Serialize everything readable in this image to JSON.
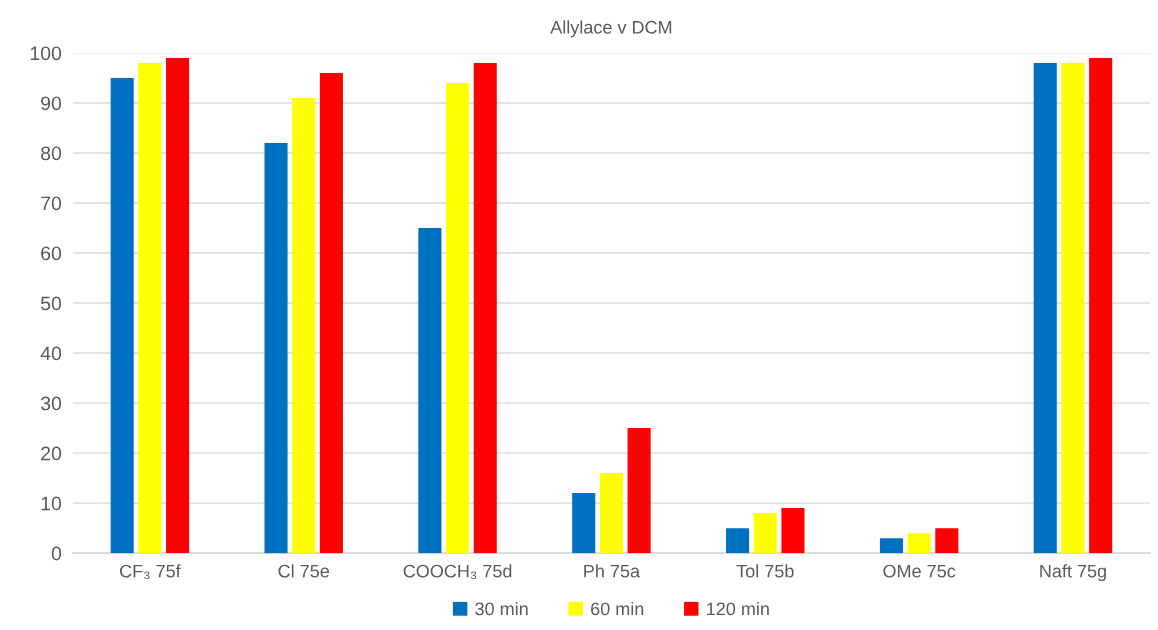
{
  "chart_data": {
    "type": "bar",
    "title": "Allylace v DCM",
    "categories": [
      "CF₃ 75f",
      "Cl 75e",
      "COOCH₃ 75d",
      "Ph 75a",
      "Tol 75b",
      "OMe 75c",
      "Naft 75g"
    ],
    "series": [
      {
        "name": "30 min",
        "color": "#0070c0",
        "values": [
          95,
          82,
          65,
          12,
          5,
          3,
          98
        ]
      },
      {
        "name": "60 min",
        "color": "#ffff00",
        "values": [
          98,
          91,
          94,
          16,
          8,
          4,
          98
        ]
      },
      {
        "name": "120 min",
        "color": "#ff0000",
        "values": [
          99,
          96,
          98,
          25,
          9,
          5,
          99
        ]
      }
    ],
    "ylim": [
      0,
      100
    ],
    "yticks": [
      0,
      10,
      20,
      30,
      40,
      50,
      60,
      70,
      80,
      90,
      100
    ],
    "grid": "y",
    "legend": "bottom"
  }
}
